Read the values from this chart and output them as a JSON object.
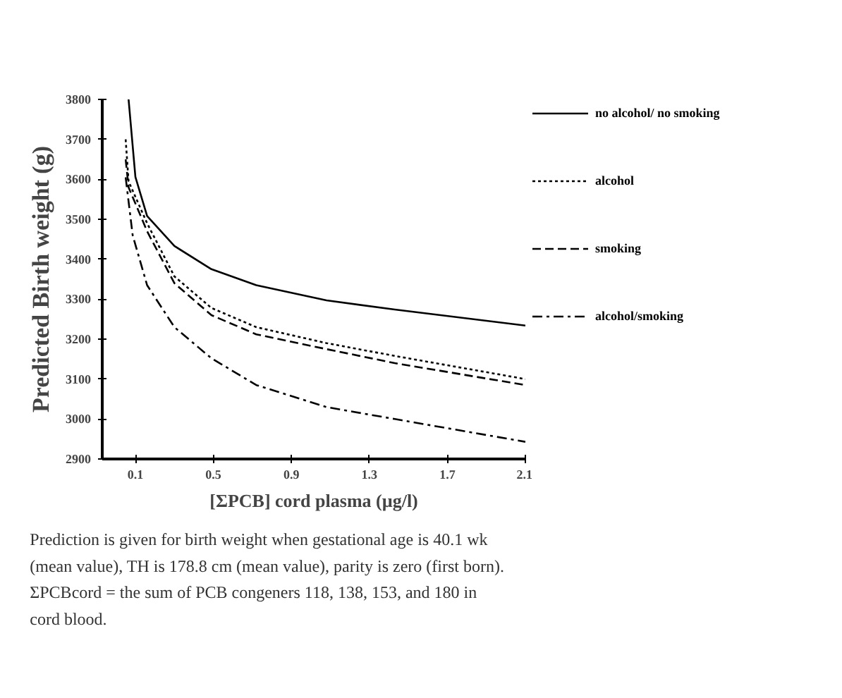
{
  "chart_data": {
    "type": "line",
    "xlabel": "[ΣPCB] cord plasma (µg/l)",
    "ylabel": "Predicted Birth weight (g)",
    "xlim": [
      -0.07,
      2.1
    ],
    "ylim": [
      2900,
      3800
    ],
    "xticks": [
      0.1,
      0.5,
      0.9,
      1.3,
      1.7,
      2.1
    ],
    "yticks": [
      2900,
      3000,
      3100,
      3200,
      3300,
      3400,
      3500,
      3600,
      3700,
      3800
    ],
    "grid": false,
    "legend": "right",
    "marker": "none",
    "series": [
      {
        "name": "no alcohol/ no smoking",
        "color": "#000000",
        "line_style": "solid",
        "x": [
          0.065,
          0.1,
          0.16,
          0.3,
          0.49,
          0.72,
          1.08,
          1.43,
          2.1
        ],
        "values": [
          3800,
          3606,
          3508,
          3433,
          3375,
          3335,
          3297,
          3274,
          3234
        ]
      },
      {
        "name": "alcohol",
        "color": "#000000",
        "line_style": "dotted",
        "x": [
          0.05,
          0.065,
          0.16,
          0.3,
          0.49,
          0.72,
          1.08,
          1.43,
          2.1
        ],
        "values": [
          3700,
          3595,
          3490,
          3357,
          3278,
          3230,
          3190,
          3158,
          3100
        ]
      },
      {
        "name": "smoking",
        "color": "#000000",
        "line_style": "dashed",
        "x": [
          0.05,
          0.065,
          0.16,
          0.3,
          0.49,
          0.72,
          1.08,
          1.43,
          2.1
        ],
        "values": [
          3650,
          3580,
          3470,
          3340,
          3260,
          3212,
          3175,
          3140,
          3085
        ]
      },
      {
        "name": "alcohol/smoking",
        "color": "#000000",
        "line_style": "dashdot",
        "x": [
          0.05,
          0.086,
          0.16,
          0.3,
          0.49,
          0.72,
          1.08,
          1.43,
          2.1
        ],
        "values": [
          3605,
          3460,
          3335,
          3230,
          3152,
          3085,
          3030,
          3000,
          2943
        ]
      }
    ],
    "annotations": [
      "Prediction is given for birth weight when gestational age is 40.1 wk\n(mean value), TH is 178.8 cm (mean value), parity is zero (first born).\nΣPCBcord = the sum of PCB congeners 118, 138, 153, and 180 in\ncord blood."
    ]
  }
}
